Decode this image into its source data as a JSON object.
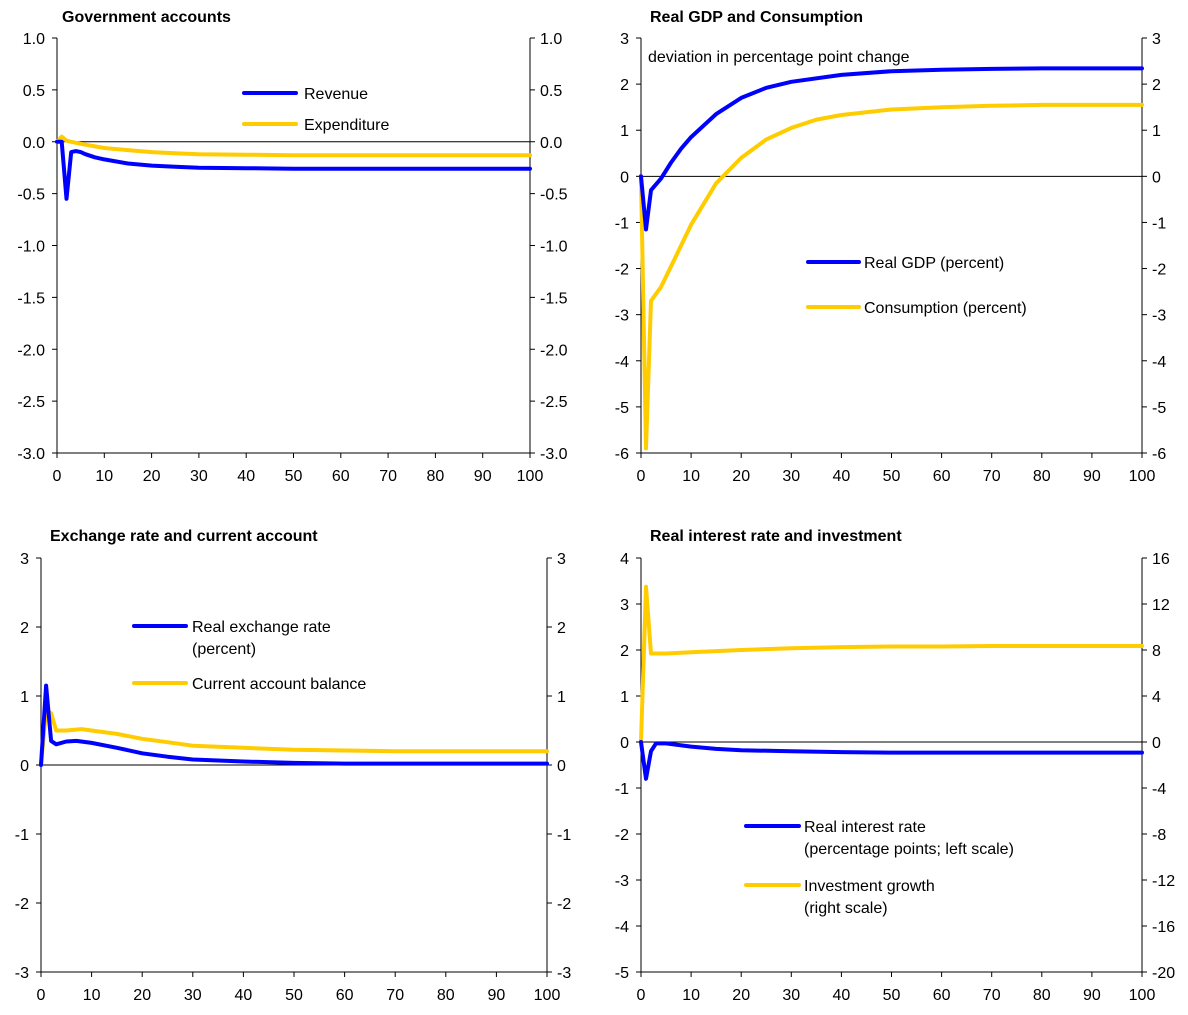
{
  "colors": {
    "blue": "#0000ff",
    "yellow": "#ffcc00",
    "axis": "#000000",
    "background": "#ffffff"
  },
  "chart_data": [
    {
      "type": "line",
      "title": "Government accounts",
      "xlim": [
        0,
        100
      ],
      "x_ticks": [
        "0",
        "10",
        "20",
        "30",
        "40",
        "50",
        "60",
        "70",
        "80",
        "90",
        "100"
      ],
      "ylim": [
        -3.0,
        1.0
      ],
      "y_ticks": [
        "1.0",
        "0.5",
        "0.0",
        "-0.5",
        "-1.0",
        "-1.5",
        "-2.0",
        "-2.5",
        "-3.0"
      ],
      "y2lim": [
        -3.0,
        1.0
      ],
      "y2_ticks": [
        "1.0",
        "0.5",
        "0.0",
        "-0.5",
        "-1.0",
        "-1.5",
        "-2.0",
        "-2.5",
        "-3.0"
      ],
      "grid": false,
      "legend_position": "top-center",
      "series": [
        {
          "name": "Revenue",
          "color": "#0000ff",
          "axis": "left",
          "x": [
            0,
            1,
            2,
            3,
            4,
            5,
            6,
            8,
            10,
            15,
            20,
            25,
            30,
            40,
            50,
            60,
            70,
            80,
            90,
            100
          ],
          "y": [
            0,
            0,
            -0.55,
            -0.1,
            -0.09,
            -0.1,
            -0.12,
            -0.15,
            -0.17,
            -0.21,
            -0.23,
            -0.24,
            -0.25,
            -0.255,
            -0.26,
            -0.26,
            -0.26,
            -0.26,
            -0.26,
            -0.26
          ]
        },
        {
          "name": "Expenditure",
          "color": "#ffcc00",
          "axis": "left",
          "x": [
            0,
            1,
            2,
            3,
            5,
            10,
            15,
            20,
            25,
            30,
            40,
            50,
            60,
            70,
            80,
            90,
            100
          ],
          "y": [
            0,
            0.05,
            0.01,
            0.0,
            -0.02,
            -0.06,
            -0.08,
            -0.1,
            -0.11,
            -0.12,
            -0.125,
            -0.13,
            -0.13,
            -0.13,
            -0.13,
            -0.13,
            -0.13
          ]
        }
      ]
    },
    {
      "type": "line",
      "title": "Real GDP and Consumption",
      "annotation": "deviation in percentage point change",
      "xlim": [
        0,
        100
      ],
      "x_ticks": [
        "0",
        "10",
        "20",
        "30",
        "40",
        "50",
        "60",
        "70",
        "80",
        "90",
        "100"
      ],
      "ylim": [
        -6,
        3
      ],
      "y_ticks": [
        "3",
        "2",
        "1",
        "0",
        "-1",
        "-2",
        "-3",
        "-4",
        "-5",
        "-6"
      ],
      "y2lim": [
        -6,
        3
      ],
      "y2_ticks": [
        "3",
        "2",
        "1",
        "0",
        "-1",
        "-2",
        "-3",
        "-4",
        "-5",
        "-6"
      ],
      "grid": false,
      "legend_position": "center-right",
      "series": [
        {
          "name": "Real GDP (percent)",
          "color": "#0000ff",
          "axis": "left",
          "x": [
            0,
            1,
            2,
            4,
            6,
            8,
            10,
            15,
            20,
            25,
            30,
            40,
            50,
            60,
            70,
            80,
            90,
            100
          ],
          "y": [
            0,
            -1.15,
            -0.3,
            -0.05,
            0.3,
            0.6,
            0.85,
            1.35,
            1.7,
            1.92,
            2.05,
            2.2,
            2.28,
            2.31,
            2.33,
            2.34,
            2.34,
            2.34
          ]
        },
        {
          "name": "Consumption (percent)",
          "color": "#ffcc00",
          "axis": "left",
          "x": [
            0,
            1,
            2,
            4,
            6,
            8,
            10,
            15,
            20,
            25,
            30,
            35,
            40,
            50,
            60,
            70,
            80,
            90,
            100
          ],
          "y": [
            0,
            -5.9,
            -2.7,
            -2.4,
            -1.95,
            -1.5,
            -1.05,
            -0.15,
            0.4,
            0.8,
            1.05,
            1.23,
            1.33,
            1.45,
            1.5,
            1.53,
            1.55,
            1.55,
            1.55
          ]
        }
      ]
    },
    {
      "type": "line",
      "title": "Exchange rate and current account",
      "xlim": [
        0,
        100
      ],
      "x_ticks": [
        "0",
        "10",
        "20",
        "30",
        "40",
        "50",
        "60",
        "70",
        "80",
        "90",
        "100"
      ],
      "ylim": [
        -3,
        3
      ],
      "y_ticks": [
        "3",
        "2",
        "1",
        "0",
        "-1",
        "-2",
        "-3"
      ],
      "y2lim": [
        -3,
        3
      ],
      "y2_ticks": [
        "3",
        "2",
        "1",
        "0",
        "-1",
        "-2",
        "-3"
      ],
      "grid": false,
      "legend_position": "top-center",
      "series": [
        {
          "name": "Real exchange rate (percent)",
          "color": "#0000ff",
          "axis": "left",
          "x": [
            0,
            1,
            2,
            3,
            5,
            7,
            10,
            15,
            20,
            25,
            30,
            40,
            50,
            60,
            70,
            80,
            90,
            100
          ],
          "y": [
            0,
            1.15,
            0.35,
            0.3,
            0.34,
            0.35,
            0.32,
            0.25,
            0.17,
            0.12,
            0.08,
            0.05,
            0.03,
            0.02,
            0.02,
            0.02,
            0.02,
            0.02
          ]
        },
        {
          "name": "Current account balance",
          "color": "#ffcc00",
          "axis": "left",
          "x": [
            0,
            1,
            2,
            3,
            5,
            8,
            10,
            15,
            20,
            25,
            30,
            40,
            50,
            60,
            70,
            80,
            90,
            100
          ],
          "y": [
            0,
            0.8,
            0.75,
            0.5,
            0.5,
            0.52,
            0.5,
            0.45,
            0.38,
            0.33,
            0.28,
            0.25,
            0.22,
            0.21,
            0.2,
            0.2,
            0.2,
            0.2
          ]
        }
      ]
    },
    {
      "type": "line",
      "title": "Real interest rate and investment",
      "xlim": [
        0,
        100
      ],
      "x_ticks": [
        "0",
        "10",
        "20",
        "30",
        "40",
        "50",
        "60",
        "70",
        "80",
        "90",
        "100"
      ],
      "ylim": [
        -5,
        4
      ],
      "y_ticks": [
        "4",
        "3",
        "2",
        "1",
        "0",
        "-1",
        "-2",
        "-3",
        "-4",
        "-5"
      ],
      "y2lim": [
        -20,
        16
      ],
      "y2_ticks": [
        "16",
        "12",
        "8",
        "4",
        "0",
        "-4",
        "-8",
        "-12",
        "-16",
        "-20"
      ],
      "grid": false,
      "legend_position": "bottom-center",
      "series": [
        {
          "name": "Real interest rate (percentage points; left scale)",
          "color": "#0000ff",
          "axis": "left",
          "x": [
            0,
            1,
            2,
            3,
            5,
            10,
            15,
            20,
            30,
            40,
            50,
            60,
            70,
            80,
            90,
            100
          ],
          "y": [
            0,
            -0.8,
            -0.2,
            -0.03,
            -0.03,
            -0.1,
            -0.15,
            -0.18,
            -0.2,
            -0.22,
            -0.23,
            -0.23,
            -0.23,
            -0.23,
            -0.23,
            -0.23
          ]
        },
        {
          "name": "Investment growth (right scale)",
          "color": "#ffcc00",
          "axis": "right",
          "x": [
            0,
            1,
            2,
            3,
            5,
            10,
            20,
            30,
            40,
            50,
            60,
            70,
            80,
            90,
            100
          ],
          "y": [
            0,
            13.5,
            7.7,
            7.7,
            7.7,
            7.8,
            8.0,
            8.15,
            8.25,
            8.3,
            8.3,
            8.35,
            8.35,
            8.35,
            8.35
          ]
        }
      ]
    }
  ]
}
